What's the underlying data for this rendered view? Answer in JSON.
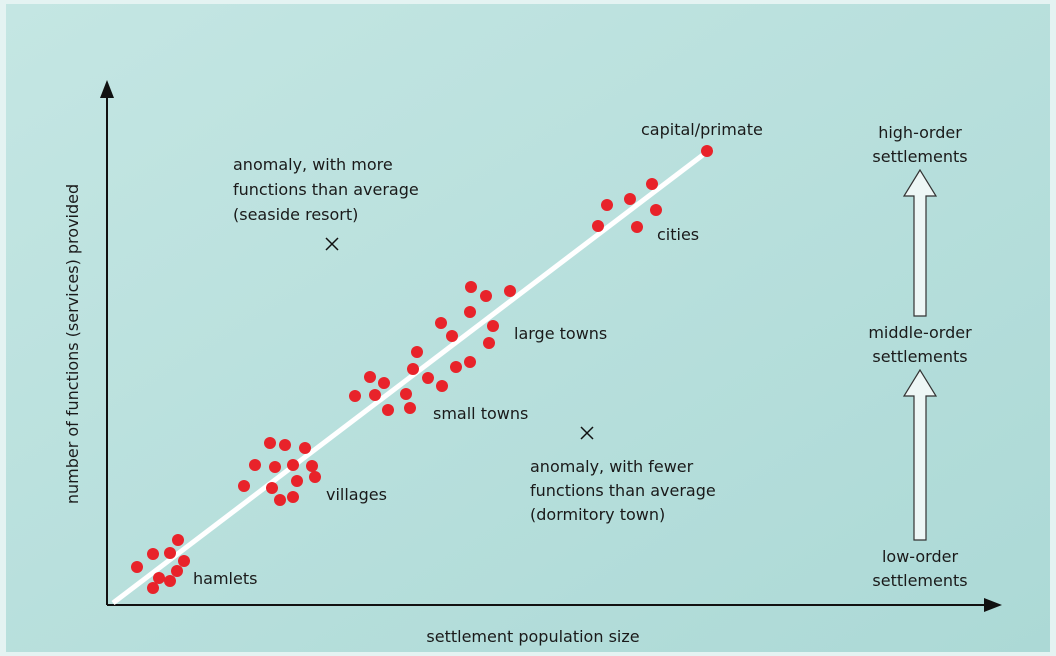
{
  "axes": {
    "y_label": "number of functions (services) provided",
    "x_label": "settlement population size"
  },
  "groups": [
    "hamlets",
    "villages",
    "small towns",
    "large towns",
    "cities",
    "capital/primate"
  ],
  "anomalies": [
    [
      "anomaly, with more",
      "functions than average",
      "(seaside resort)"
    ],
    [
      "anomaly, with fewer",
      "functions than average",
      "(dormitory town)"
    ]
  ],
  "hierarchy": [
    [
      "high-order",
      "settlements"
    ],
    [
      "middle-order",
      "settlements"
    ],
    [
      "low-order",
      "settlements"
    ]
  ]
}
